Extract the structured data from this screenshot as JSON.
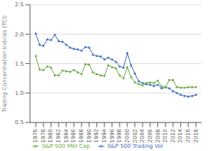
{
  "chart_data": {
    "type": "line",
    "x": [
      1976,
      1977,
      1978,
      1979,
      1980,
      1981,
      1982,
      1983,
      1984,
      1985,
      1986,
      1987,
      1988,
      1989,
      1990,
      1991,
      1992,
      1993,
      1994,
      1995,
      1996,
      1997,
      1998,
      1999,
      2000,
      2001,
      2002,
      2003,
      2004,
      2005,
      2006,
      2007,
      2008,
      2009,
      2010,
      2011,
      2012,
      2013,
      2014,
      2015,
      2016,
      2017,
      2018
    ],
    "series": [
      {
        "name": "S&P 500 Trading Vol",
        "color": "#4472c4",
        "marker": "square",
        "values": [
          2.01,
          1.82,
          1.8,
          1.91,
          1.9,
          1.99,
          1.88,
          1.87,
          1.82,
          1.77,
          1.75,
          1.74,
          1.72,
          1.78,
          1.77,
          1.65,
          1.63,
          1.62,
          1.57,
          1.6,
          1.57,
          1.53,
          1.45,
          1.43,
          1.68,
          1.47,
          1.33,
          1.2,
          1.17,
          1.15,
          1.14,
          1.12,
          1.14,
          1.08,
          1.1,
          1.08,
          1.03,
          1.0,
          0.97,
          0.95,
          0.94,
          0.95,
          0.97
        ]
      },
      {
        "name": "S&P 500 Mkt Cap",
        "color": "#70ad47",
        "marker": "square",
        "values": [
          1.63,
          1.4,
          1.39,
          1.45,
          1.43,
          1.3,
          1.3,
          1.38,
          1.37,
          1.36,
          1.39,
          1.35,
          1.32,
          1.49,
          1.48,
          1.35,
          1.32,
          1.3,
          1.29,
          1.47,
          1.44,
          1.42,
          1.3,
          1.25,
          1.44,
          1.27,
          1.18,
          1.15,
          1.13,
          1.17,
          1.18,
          1.17,
          1.21,
          1.11,
          1.1,
          1.22,
          1.22,
          1.1,
          1.09,
          1.09,
          1.1,
          1.1,
          1.1
        ]
      }
    ],
    "xlim": [
      1974.5,
      2019.5
    ],
    "xticks": [
      1976,
      1978,
      1980,
      1982,
      1984,
      1986,
      1988,
      1990,
      1992,
      1994,
      1996,
      1998,
      2000,
      2002,
      2004,
      2006,
      2008,
      2010,
      2012,
      2014,
      2016,
      2018
    ],
    "ylim": [
      0.5,
      2.5
    ],
    "yticks": [
      0.5,
      {
        "value": 1,
        "label": "1.0"
      },
      1.5,
      {
        "value": 2,
        "label": "2.0"
      },
      2.5
    ],
    "ylabel": "Trading Concentration Indices (TCI)",
    "grid": true,
    "legend": "bottom"
  }
}
